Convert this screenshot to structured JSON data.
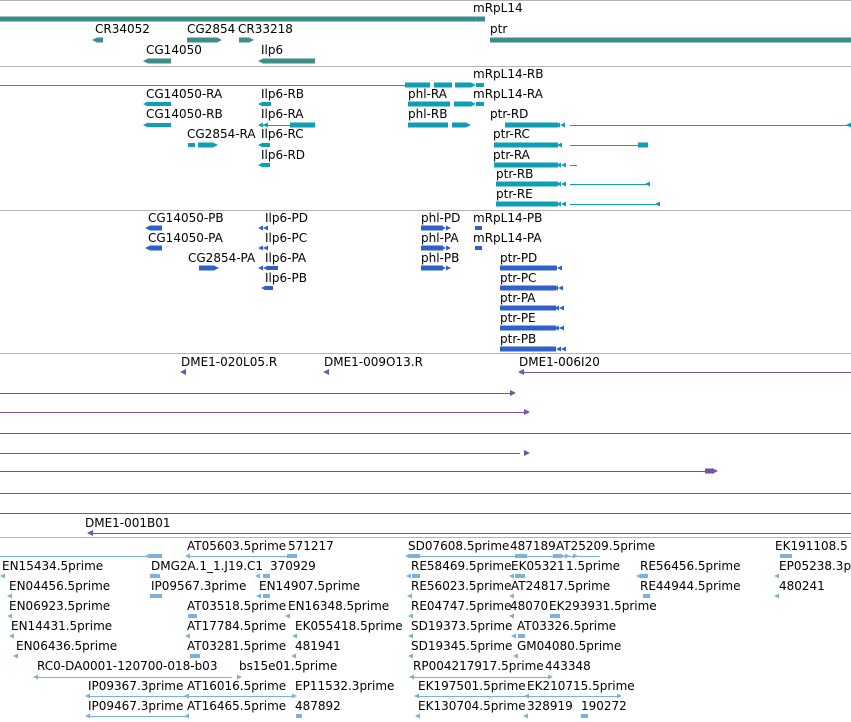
{
  "colors": {
    "gene": "#3e8d88",
    "transcript": "#0e9fb5",
    "protein": "#2f62c8",
    "clone": "#7253a5",
    "est": "#7db1db",
    "separator": "#b4b4b4"
  },
  "tracks": {
    "genes": [
      {
        "label": "mRpL14"
      },
      {
        "label": "CR34052"
      },
      {
        "label": "CG2854"
      },
      {
        "label": "CR33218"
      },
      {
        "label": "ptr"
      },
      {
        "label": "CG14050"
      },
      {
        "label": "Ilp6"
      }
    ],
    "transcripts": [
      {
        "label": "mRpL14-RB"
      },
      {
        "label": "CG14050-RA"
      },
      {
        "label": "Ilp6-RB"
      },
      {
        "label": "phl-RA"
      },
      {
        "label": "mRpL14-RA"
      },
      {
        "label": "CG14050-RB"
      },
      {
        "label": "Ilp6-RA"
      },
      {
        "label": "phl-RB"
      },
      {
        "label": "ptr-RD"
      },
      {
        "label": "CG2854-RA"
      },
      {
        "label": "Ilp6-RC"
      },
      {
        "label": "ptr-RC"
      },
      {
        "label": "Ilp6-RD"
      },
      {
        "label": "ptr-RA"
      },
      {
        "label": "ptr-RB"
      },
      {
        "label": "ptr-RE"
      }
    ],
    "proteins": [
      {
        "label": "CG14050-PB"
      },
      {
        "label": "Ilp6-PD"
      },
      {
        "label": "phl-PD"
      },
      {
        "label": "mRpL14-PB"
      },
      {
        "label": "CG14050-PA"
      },
      {
        "label": "Ilp6-PC"
      },
      {
        "label": "phl-PA"
      },
      {
        "label": "mRpL14-PA"
      },
      {
        "label": "CG2854-PA"
      },
      {
        "label": "Ilp6-PA"
      },
      {
        "label": "phl-PB"
      },
      {
        "label": "ptr-PD"
      },
      {
        "label": "Ilp6-PB"
      },
      {
        "label": "ptr-PC"
      },
      {
        "label": "ptr-PA"
      },
      {
        "label": "ptr-PE"
      },
      {
        "label": "ptr-PB"
      }
    ],
    "clones": [
      {
        "label": "DME1-020L05.R"
      },
      {
        "label": "DME1-009O13.R"
      },
      {
        "label": "DME1-006I20"
      },
      {
        "label": "DME1-001B01"
      }
    ],
    "ests": [
      {
        "label": "AT05603.5prime"
      },
      {
        "label": "571217"
      },
      {
        "label": "SD07608.5prime"
      },
      {
        "label": "487189"
      },
      {
        "label": "AT25209.5prime"
      },
      {
        "label": "EK191108.5"
      },
      {
        "label": "EN15434.5prime"
      },
      {
        "label": "DMG2A.1_1.J19.C1"
      },
      {
        "label": "370929"
      },
      {
        "label": "RE58469.5prime"
      },
      {
        "label": "EK05321"
      },
      {
        "label": "1.5prime"
      },
      {
        "label": "RE56456.5prime"
      },
      {
        "label": "EP05238.3p"
      },
      {
        "label": "EN04456.5prime"
      },
      {
        "label": "IP09567.3prime"
      },
      {
        "label": "EN14907.5prime"
      },
      {
        "label": "RE56023.5prime"
      },
      {
        "label": "AT24817.5prime"
      },
      {
        "label": "RE44944.5prime"
      },
      {
        "label": "480241"
      },
      {
        "label": "EN06923.5prime"
      },
      {
        "label": "AT03518.5prime"
      },
      {
        "label": "EN16348.5prime"
      },
      {
        "label": "RE04747.5prime"
      },
      {
        "label": "48070"
      },
      {
        "label": "EK293931.5prime"
      },
      {
        "label": "EN14431.5prime"
      },
      {
        "label": "AT17784.5prime"
      },
      {
        "label": "EK055418.5prime"
      },
      {
        "label": "SD19373.5prime"
      },
      {
        "label": "AT03326.5prime"
      },
      {
        "label": "EN06436.5prime"
      },
      {
        "label": "AT03281.5prime"
      },
      {
        "label": "481941"
      },
      {
        "label": "SD19345.5prime"
      },
      {
        "label": "GM04080.5prime"
      },
      {
        "label": "RC0-DA0001-120700-018-b03"
      },
      {
        "label": "bs15e01.5prime"
      },
      {
        "label": "RP004217917.5prime"
      },
      {
        "label": "443348"
      },
      {
        "label": "IP09367.3prime"
      },
      {
        "label": "AT16016.5prime"
      },
      {
        "label": "EP11532.3prime"
      },
      {
        "label": "EK197501.5prime"
      },
      {
        "label": "EK210715.5prime"
      },
      {
        "label": "IP09467.3prime"
      },
      {
        "label": "AT16465.5prime"
      },
      {
        "label": "487892"
      },
      {
        "label": "EK130704.5prime"
      },
      {
        "label": "328919"
      },
      {
        "label": "190272"
      }
    ]
  }
}
